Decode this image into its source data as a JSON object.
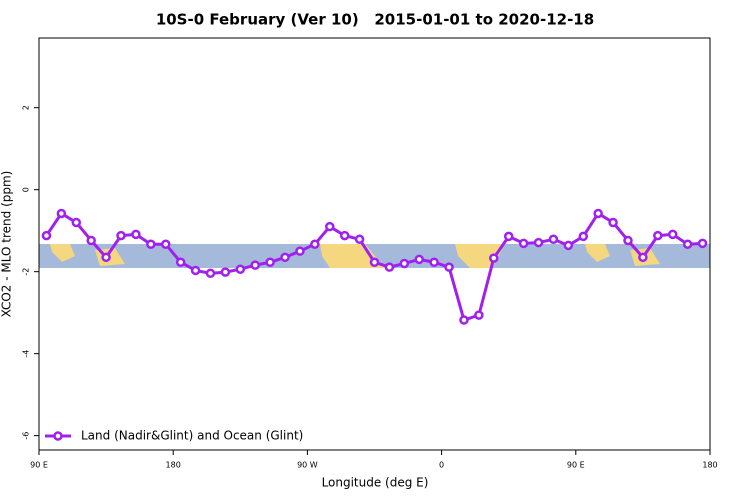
{
  "chart_data": {
    "type": "line",
    "title": "10S-0 February (Ver 10)   2015-01-01 to 2020-12-18",
    "x_label": "Longitude (deg E)",
    "y_label": "XCO2 - MLO trend (ppm)",
    "x": [
      95,
      105,
      115,
      125,
      135,
      145,
      155,
      165,
      175,
      185,
      195,
      205,
      215,
      225,
      235,
      245,
      255,
      265,
      275,
      285,
      295,
      305,
      315,
      325,
      335,
      345,
      355,
      365,
      375,
      385,
      395,
      405,
      415,
      425,
      435,
      445,
      455,
      465,
      475,
      485,
      495,
      505,
      515,
      525,
      535
    ],
    "series": [
      {
        "name": "Land (Nadir&Glint) and Ocean (Glint)",
        "color": "#a020f0",
        "values": [
          -1.12,
          -0.58,
          -0.8,
          -1.24,
          -1.65,
          -1.12,
          -1.09,
          -1.33,
          -1.33,
          -1.77,
          -1.97,
          -2.04,
          -2.01,
          -1.94,
          -1.84,
          -1.77,
          -1.65,
          -1.5,
          -1.33,
          -0.9,
          -1.12,
          -1.21,
          -1.77,
          -1.89,
          -1.8,
          -1.7,
          -1.77,
          -1.89,
          -3.18,
          -3.06,
          -1.67,
          -1.14,
          -1.31,
          -1.29,
          -1.21,
          -1.36,
          -1.14,
          -0.58,
          -0.8,
          -1.24,
          -1.65,
          -1.12,
          -1.09,
          -1.33,
          -1.31
        ]
      }
    ],
    "xlim": [
      90,
      540
    ],
    "xticks": [
      {
        "value": 90,
        "label": "90 E"
      },
      {
        "value": 180,
        "label": "180"
      },
      {
        "value": 270,
        "label": "90 W"
      },
      {
        "value": 360,
        "label": "0"
      },
      {
        "value": 450,
        "label": "90 E"
      },
      {
        "value": 540,
        "label": "180"
      }
    ],
    "ylim": [
      -6.35,
      3.7
    ],
    "yticks": [
      -6,
      -4,
      -2,
      0,
      2
    ],
    "legend": "bottom-left"
  }
}
